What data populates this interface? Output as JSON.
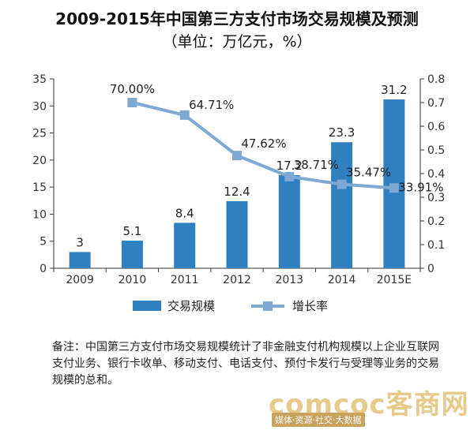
{
  "title_line1": "2009-2015年中国第三方支付市场交易规模及预测",
  "title_line2": "（单位：万亿元，%）",
  "chart_data": {
    "type": "bar+line",
    "categories": [
      "2009",
      "2010",
      "2011",
      "2012",
      "2013",
      "2014",
      "2015E"
    ],
    "series": [
      {
        "name": "交易规模",
        "type": "bar",
        "axis": "left",
        "values": [
          3,
          5.1,
          8.4,
          12.4,
          17.2,
          23.3,
          31.2
        ],
        "labels": [
          "3",
          "5.1",
          "8.4",
          "12.4",
          "17.2",
          "23.3",
          "31.2"
        ],
        "color": "#2f7fc1"
      },
      {
        "name": "增长率",
        "type": "line",
        "axis": "right",
        "values": [
          null,
          0.7,
          0.6471,
          0.4762,
          0.3871,
          0.3547,
          0.3391
        ],
        "labels": [
          "",
          "70.00%",
          "64.71%",
          "47.62%",
          "38.71%",
          "35.47%",
          "33.91%"
        ],
        "color": "#7fa9d4"
      }
    ],
    "y_left": {
      "min": 0,
      "max": 35,
      "ticks": [
        "0",
        "5",
        "10",
        "15",
        "20",
        "25",
        "30",
        "35"
      ]
    },
    "y_right": {
      "min": 0,
      "max": 0.8,
      "ticks": [
        "0",
        "0.1",
        "0.2",
        "0.3",
        "0.4",
        "0.5",
        "0.6",
        "0.7",
        "0.8"
      ]
    },
    "grid": false,
    "legend_position": "bottom"
  },
  "note": "备注：中国第三方支付市场交易规模统计了非金融支付机构规模以上企业互联网支付业务、银行卡收单、移动支付、电话支付、预付卡发行与受理等业务的交易规模的总和。",
  "watermark": {
    "main": "comcoc客商网",
    "sub": "媒体·资源·社交·大数据"
  }
}
